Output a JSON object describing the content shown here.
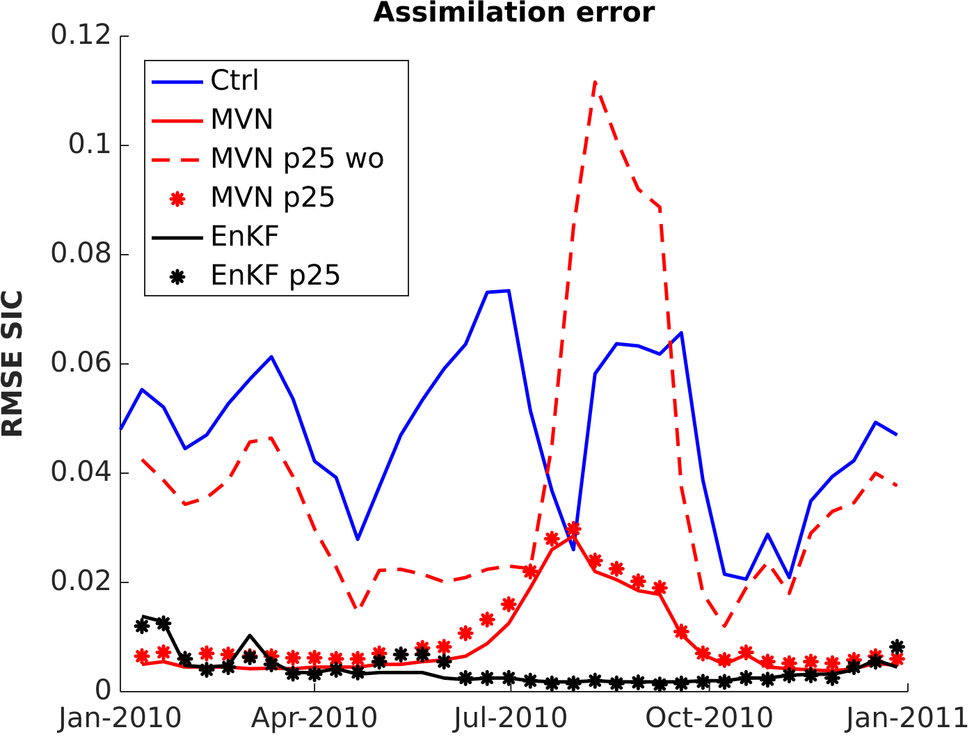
{
  "chart_data": {
    "type": "line",
    "title": "Assimilation error",
    "y_label": "RMSE SIC",
    "xlim": [
      0,
      365
    ],
    "xticks": [
      {
        "value": 0,
        "label": "Jan-2010"
      },
      {
        "value": 90,
        "label": "Apr-2010"
      },
      {
        "value": 181,
        "label": "Jul-2010"
      },
      {
        "value": 273,
        "label": "Oct-2010"
      },
      {
        "value": 365,
        "label": "Jan-2011"
      }
    ],
    "ylim": [
      0,
      0.12
    ],
    "yticks": [
      0,
      0.02,
      0.04,
      0.06,
      0.08,
      0.1,
      0.12
    ],
    "legend": "upper left",
    "x": [
      0,
      10,
      20,
      30,
      40,
      50,
      60,
      70,
      80,
      90,
      100,
      110,
      120,
      130,
      140,
      150,
      160,
      170,
      180,
      190,
      200,
      210,
      220,
      230,
      240,
      250,
      260,
      270,
      280,
      290,
      300,
      310,
      320,
      330,
      340,
      350,
      360
    ],
    "series": [
      {
        "name": "Ctrl",
        "color": "#0000ff",
        "style": "solid",
        "values": [
          0.048,
          0.0553,
          0.0521,
          0.0445,
          0.047,
          0.0527,
          0.0572,
          0.0613,
          0.0536,
          0.0422,
          0.0392,
          0.0279,
          0.0375,
          0.047,
          0.0534,
          0.0591,
          0.0636,
          0.0731,
          0.0734,
          0.0515,
          0.0368,
          0.026,
          0.0582,
          0.0637,
          0.0633,
          0.0618,
          0.0657,
          0.0387,
          0.0215,
          0.0206,
          0.0288,
          0.0209,
          0.0349,
          0.0394,
          0.0423,
          0.0493,
          0.047
        ]
      },
      {
        "name": "MVN",
        "color": "#ff0000",
        "style": "solid",
        "values": [
          null,
          0.005,
          0.0055,
          0.0045,
          0.0045,
          0.0045,
          0.0042,
          0.0043,
          0.0042,
          0.0045,
          0.0045,
          0.0045,
          0.005,
          0.005,
          0.0055,
          0.0058,
          0.0065,
          0.0088,
          0.0125,
          0.019,
          0.026,
          0.0285,
          0.022,
          0.0205,
          0.0185,
          0.0178,
          0.0105,
          0.0068,
          0.005,
          0.0068,
          0.0045,
          0.0042,
          0.004,
          0.0038,
          0.0042,
          0.0052,
          0.0048
        ]
      },
      {
        "name": "MVN p25 wo",
        "color": "#ff0000",
        "style": "dashed",
        "values": [
          null,
          0.0425,
          0.0387,
          0.0343,
          0.0355,
          0.0387,
          0.0457,
          0.0464,
          0.0394,
          0.0298,
          0.0228,
          0.0145,
          0.0222,
          0.0224,
          0.0215,
          0.0201,
          0.0209,
          0.0224,
          0.023,
          0.0225,
          0.045,
          0.085,
          0.1116,
          0.101,
          0.092,
          0.0887,
          0.0375,
          0.018,
          0.012,
          0.019,
          0.0237,
          0.018,
          0.029,
          0.033,
          0.0346,
          0.04,
          0.0377
        ]
      },
      {
        "name": "MVN p25",
        "color": "#ff0000",
        "style": "markers",
        "values": [
          null,
          0.0065,
          0.0072,
          0.006,
          0.007,
          0.0068,
          0.0065,
          0.0065,
          0.0062,
          0.0062,
          0.006,
          0.006,
          0.007,
          0.0068,
          0.008,
          0.0082,
          0.0107,
          0.0132,
          0.016,
          0.022,
          0.028,
          0.0298,
          0.024,
          0.0225,
          0.0202,
          0.019,
          0.011,
          0.007,
          0.0058,
          0.0072,
          0.0055,
          0.0052,
          0.0055,
          0.0052,
          0.0058,
          0.0065,
          0.006
        ]
      },
      {
        "name": "EnKF",
        "color": "#000000",
        "style": "solid",
        "values": [
          null,
          0.0138,
          0.0128,
          0.0048,
          0.0045,
          0.0048,
          0.0103,
          0.0055,
          0.0035,
          0.0035,
          0.0042,
          0.0032,
          0.0035,
          0.0035,
          0.0035,
          0.0025,
          0.0022,
          0.0025,
          0.0025,
          0.002,
          0.0018,
          0.0018,
          0.002,
          0.0018,
          0.0018,
          0.0018,
          0.0018,
          0.002,
          0.002,
          0.0025,
          0.0025,
          0.003,
          0.0032,
          0.0032,
          0.004,
          0.0058,
          0.0045
        ]
      },
      {
        "name": "EnKF p25",
        "color": "#000000",
        "style": "markers",
        "values": [
          null,
          0.012,
          0.0125,
          0.006,
          0.004,
          0.0045,
          0.0063,
          0.005,
          0.0033,
          0.0032,
          0.004,
          0.0035,
          0.0055,
          0.0068,
          0.0068,
          0.0055,
          0.0025,
          0.0025,
          0.0025,
          0.002,
          0.0015,
          0.0015,
          0.002,
          0.0015,
          0.0017,
          0.0013,
          0.0015,
          0.0018,
          0.0018,
          0.0025,
          0.0022,
          0.003,
          0.003,
          0.0025,
          0.0045,
          0.0055,
          0.0082
        ]
      }
    ]
  }
}
